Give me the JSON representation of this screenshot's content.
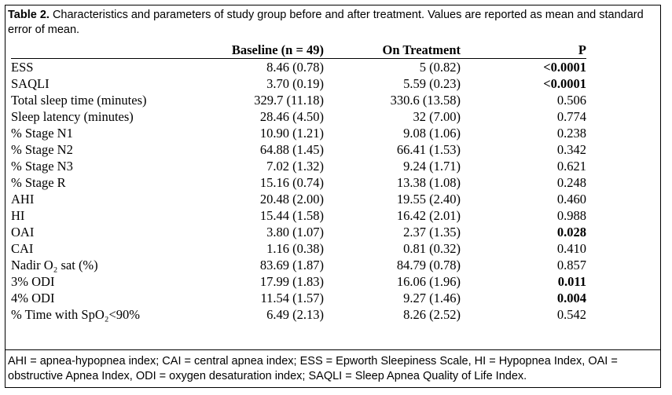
{
  "caption": {
    "label": "Table 2.",
    "text": " Characteristics and parameters of study group before and after treatment. Values are reported as mean and standard error of mean."
  },
  "table": {
    "headers": [
      "",
      "Baseline (n = 49)",
      "On Treatment",
      "P"
    ],
    "rows": [
      {
        "name": "ESS",
        "baseline": "8.46 (0.78)",
        "treatment": "5 (0.82)",
        "p": "<0.0001",
        "bold": true
      },
      {
        "name": "SAQLI",
        "baseline": "3.70 (0.19)",
        "treatment": "5.59 (0.23)",
        "p": "<0.0001",
        "bold": true
      },
      {
        "name": "Total sleep time (minutes)",
        "baseline": "329.7 (11.18)",
        "treatment": "330.6 (13.58)",
        "p": "0.506",
        "bold": false
      },
      {
        "name": "Sleep latency (minutes)",
        "baseline": "28.46 (4.50)",
        "treatment": "32 (7.00)",
        "p": "0.774",
        "bold": false
      },
      {
        "name": "% Stage N1",
        "baseline": "10.90 (1.21)",
        "treatment": "9.08 (1.06)",
        "p": "0.238",
        "bold": false
      },
      {
        "name": "% Stage N2",
        "baseline": "64.88 (1.45)",
        "treatment": "66.41 (1.53)",
        "p": "0.342",
        "bold": false
      },
      {
        "name": "% Stage N3",
        "baseline": "7.02 (1.32)",
        "treatment": "9.24 (1.71)",
        "p": "0.621",
        "bold": false
      },
      {
        "name": "% Stage R",
        "baseline": "15.16 (0.74)",
        "treatment": "13.38 (1.08)",
        "p": "0.248",
        "bold": false
      },
      {
        "name": "AHI",
        "baseline": "20.48 (2.00)",
        "treatment": "19.55 (2.40)",
        "p": "0.460",
        "bold": false
      },
      {
        "name": "HI",
        "baseline": "15.44 (1.58)",
        "treatment": "16.42 (2.01)",
        "p": "0.988",
        "bold": false
      },
      {
        "name": "OAI",
        "baseline": "3.80 (1.07)",
        "treatment": "2.37 (1.35)",
        "p": "0.028",
        "bold": true
      },
      {
        "name": "CAI",
        "baseline": "1.16 (0.38)",
        "treatment": "0.81 (0.32)",
        "p": "0.410",
        "bold": false
      },
      {
        "name": "Nadir O₂ sat (%)",
        "baseline": "83.69 (1.87)",
        "treatment": "84.79 (0.78)",
        "p": "0.857",
        "bold": false
      },
      {
        "name": "3% ODI",
        "baseline": "17.99 (1.83)",
        "treatment": "16.06 (1.96)",
        "p": "0.011",
        "bold": true
      },
      {
        "name": "4% ODI",
        "baseline": "11.54 (1.57)",
        "treatment": "9.27 (1.46)",
        "p": "0.004",
        "bold": true
      },
      {
        "name": "% Time with SpO₂<90%",
        "baseline": "6.49 (2.13)",
        "treatment": "8.26 (2.52)",
        "p": "0.542",
        "bold": false
      }
    ]
  },
  "footnote": "AHI = apnea-hypopnea index; CAI = central apnea index; ESS = Epworth Sleepiness Scale, HI = Hypopnea Index, OAI = obstructive Apnea Index, ODI = oxygen desaturation index; SAQLI = Sleep Apnea Quality of Life Index."
}
